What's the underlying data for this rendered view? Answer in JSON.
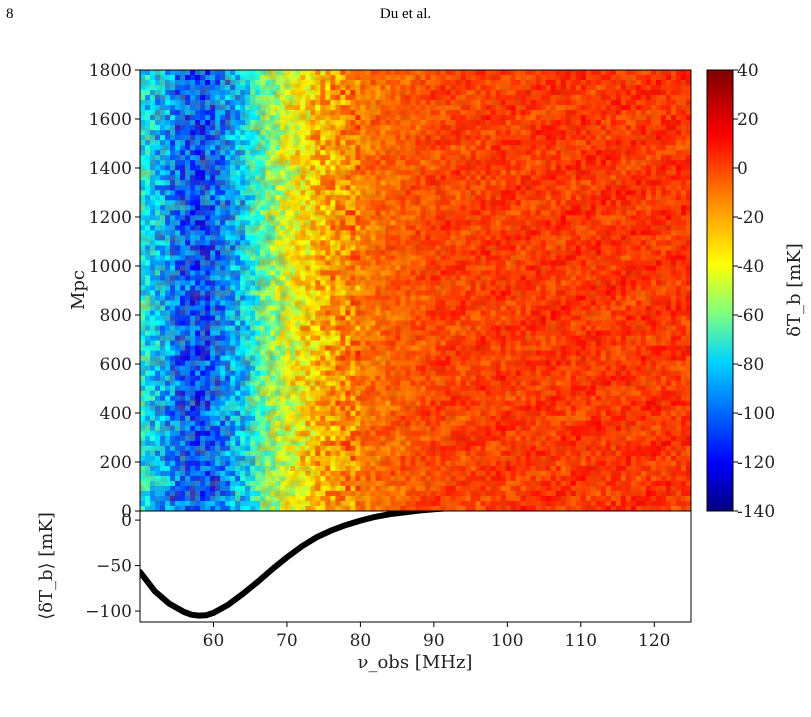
{
  "header": {
    "page_number": "8",
    "running_head": "Du et al."
  },
  "chart_data": [
    {
      "type": "heatmap",
      "title": "",
      "xlabel": "",
      "ylabel": "Mpc",
      "xlim": [
        50,
        125
      ],
      "ylim": [
        0,
        1800
      ],
      "yticks": [
        0,
        200,
        400,
        600,
        800,
        1000,
        1200,
        1400,
        1600,
        1800
      ],
      "colorbar": {
        "label": "δT_b [mK]",
        "range": [
          -140,
          40
        ],
        "ticks": [
          40,
          20,
          0,
          -20,
          -40,
          -60,
          -80,
          -100,
          -120,
          -140
        ],
        "colormap": [
          "#00007f",
          "#0000ff",
          "#007fff",
          "#00ffff",
          "#7fff7f",
          "#ffff00",
          "#ff7f00",
          "#ff0000",
          "#7f0000"
        ]
      },
      "x": [
        50,
        55,
        58,
        61,
        64,
        67,
        70,
        75,
        80,
        85,
        90,
        100,
        110,
        125
      ],
      "values": [
        -70,
        -95,
        -105,
        -95,
        -80,
        -55,
        -35,
        -15,
        -5,
        0,
        5,
        7,
        8,
        8
      ]
    },
    {
      "type": "line",
      "title": "",
      "xlabel": "ν_obs [MHz]",
      "ylabel": "⟨δT_b⟩ [mK]",
      "xlim": [
        50,
        125
      ],
      "ylim": [
        -112,
        10
      ],
      "xticks": [
        60,
        70,
        80,
        90,
        100,
        110,
        120
      ],
      "yticks": [
        0,
        -50,
        -100
      ],
      "series": [
        {
          "x": [
            50,
            52,
            54,
            56,
            57,
            58,
            59,
            60,
            62,
            64,
            66,
            68,
            70,
            72,
            74,
            76,
            78,
            80,
            82,
            84,
            86,
            88,
            90,
            92,
            95,
            98,
            100,
            105,
            110,
            115,
            120,
            125
          ],
          "values": [
            -57,
            -78,
            -92,
            -101,
            -104,
            -105,
            -104.5,
            -102,
            -93,
            -81,
            -68,
            -54,
            -41,
            -29,
            -19,
            -11.5,
            -5.5,
            -0.5,
            3.5,
            6.5,
            8.5,
            10.5,
            12,
            13,
            14,
            14.5,
            15,
            15.3,
            15.5,
            15.4,
            15.2,
            15
          ]
        }
      ]
    }
  ]
}
